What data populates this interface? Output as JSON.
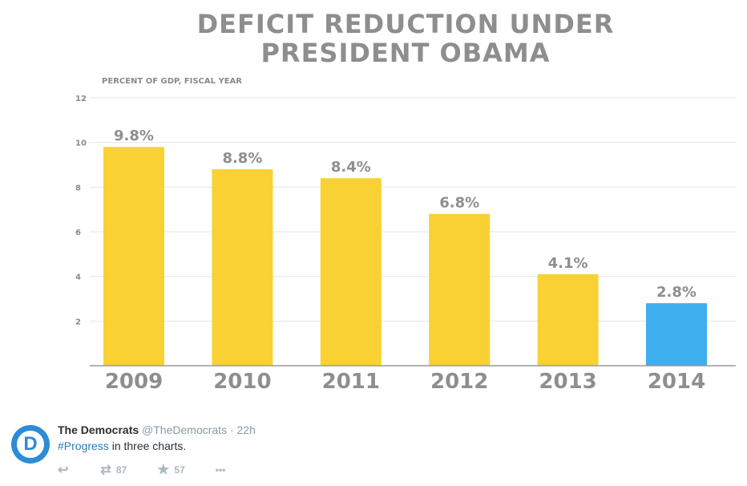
{
  "chart_data": {
    "type": "bar",
    "title": "DEFICIT REDUCTION UNDER PRESIDENT OBAMA",
    "title_lines": [
      "DEFICIT REDUCTION UNDER",
      "PRESIDENT OBAMA"
    ],
    "ylabel": "PERCENT OF GDP, FISCAL YEAR",
    "xlabel": "",
    "categories": [
      "2009",
      "2010",
      "2011",
      "2012",
      "2013",
      "2014"
    ],
    "values": [
      9.8,
      8.8,
      8.4,
      6.8,
      4.1,
      2.8
    ],
    "data_labels": [
      "9.8%",
      "8.8%",
      "8.4%",
      "6.8%",
      "4.1%",
      "2.8%"
    ],
    "colors": [
      "#f9d133",
      "#f9d133",
      "#f9d133",
      "#f9d133",
      "#f9d133",
      "#3eaeee"
    ],
    "ylim": [
      0,
      12
    ],
    "yticks": [
      "2",
      "4",
      "6",
      "8",
      "10",
      "12"
    ],
    "grid": true
  },
  "tweet": {
    "name": "The Democrats",
    "handle": "@TheDemocrats",
    "time": "· 22h",
    "hashtag": "#Progress",
    "text": " in three charts.",
    "avatar_letter": "D",
    "retweets": "87",
    "favorites": "57",
    "more": "•••"
  }
}
